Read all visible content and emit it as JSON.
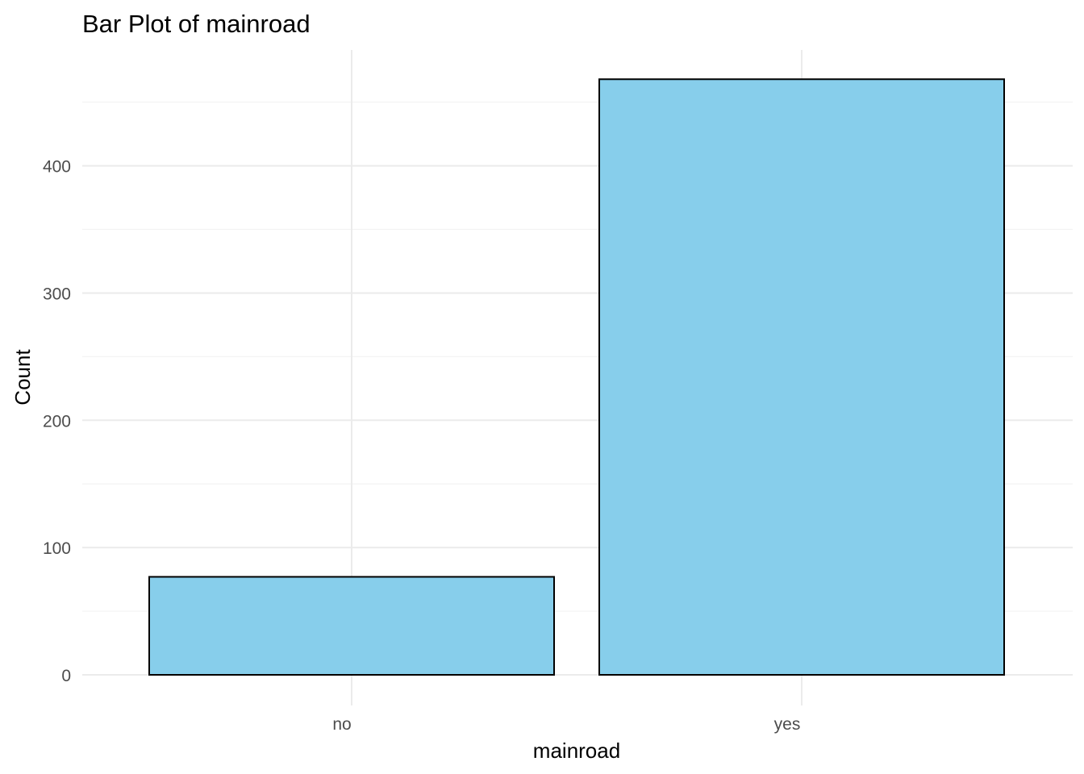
{
  "chart_data": {
    "type": "bar",
    "title": "Bar Plot of mainroad",
    "xlabel": "mainroad",
    "ylabel": "Count",
    "categories": [
      "no",
      "yes"
    ],
    "values": [
      77,
      468
    ],
    "ylim": [
      0,
      468
    ],
    "yticks": [
      0,
      100,
      200,
      300,
      400
    ],
    "ytick_labels": [
      "0",
      "100",
      "200",
      "300",
      "400"
    ],
    "grid": true,
    "legend": "none",
    "bar_color": "#87CEEB",
    "bar_edge_color": "#000000"
  }
}
